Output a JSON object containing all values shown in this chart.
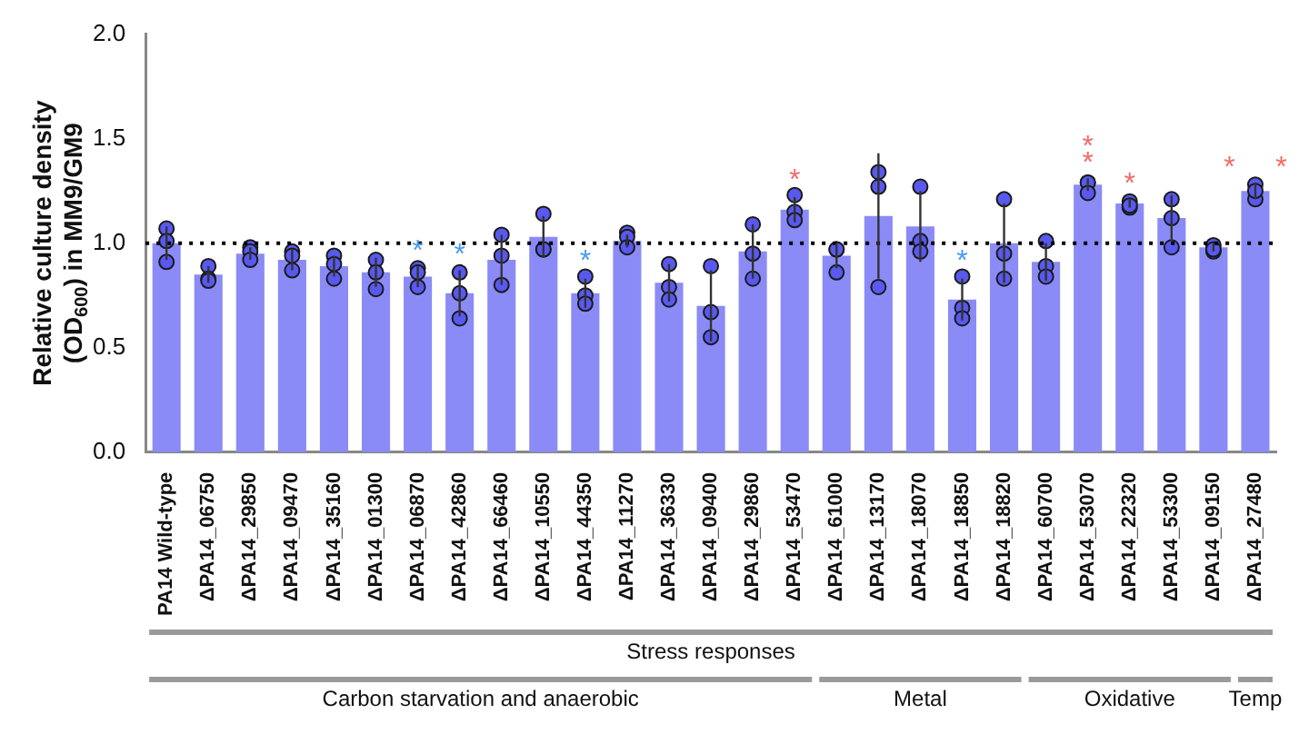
{
  "chart_data": {
    "type": "bar",
    "ylabel": "Relative culture density\n(OD$_{600}$) in MM9/GM9",
    "categories": [
      "PA14 Wild-type",
      "ΔPA14_06750",
      "ΔPA14_29850",
      "ΔPA14_09470",
      "ΔPA14_35160",
      "ΔPA14_01300",
      "ΔPA14_06870",
      "ΔPA14_42860",
      "ΔPA14_66460",
      "ΔPA14_10550",
      "ΔPA14_44350",
      "ΔPA14_11270",
      "ΔPA14_36330",
      "ΔPA14_09400",
      "ΔPA14_29860",
      "ΔPA14_53470",
      "ΔPA14_61000",
      "ΔPA14_13170",
      "ΔPA14_18070",
      "ΔPA14_18850",
      "ΔPA14_18820",
      "ΔPA14_60700",
      "ΔPA14_53070",
      "ΔPA14_22320",
      "ΔPA14_53300",
      "ΔPA14_09150",
      "ΔPA14_27480"
    ],
    "series": [
      {
        "color": "#8b8bf7",
        "values": [
          1.0,
          0.85,
          0.95,
          0.92,
          0.89,
          0.86,
          0.84,
          0.76,
          0.92,
          1.03,
          0.76,
          1.01,
          0.81,
          0.7,
          0.96,
          1.16,
          0.94,
          1.13,
          1.08,
          0.73,
          1.0,
          0.91,
          1.28,
          1.19,
          1.12,
          0.98,
          1.25
        ],
        "errors": [
          0.08,
          0.04,
          0.03,
          0.05,
          0.05,
          0.07,
          0.05,
          0.11,
          0.12,
          0.1,
          0.07,
          0.03,
          0.09,
          0.17,
          0.13,
          0.06,
          0.06,
          0.3,
          0.17,
          0.1,
          0.19,
          0.09,
          0.03,
          0.02,
          0.11,
          0.02,
          0.04
        ]
      },
      {
        "type": "scatter",
        "color": "#5959ef",
        "x": [
          "PA14 Wild-type",
          "PA14 Wild-type",
          "PA14 Wild-type",
          "ΔPA14_06750",
          "ΔPA14_06750",
          "ΔPA14_06750",
          "ΔPA14_29850",
          "ΔPA14_29850",
          "ΔPA14_29850",
          "ΔPA14_09470",
          "ΔPA14_09470",
          "ΔPA14_09470",
          "ΔPA14_35160",
          "ΔPA14_35160",
          "ΔPA14_35160",
          "ΔPA14_01300",
          "ΔPA14_01300",
          "ΔPA14_01300",
          "ΔPA14_06870",
          "ΔPA14_06870",
          "ΔPA14_06870",
          "ΔPA14_42860",
          "ΔPA14_42860",
          "ΔPA14_42860",
          "ΔPA14_66460",
          "ΔPA14_66460",
          "ΔPA14_66460",
          "ΔPA14_10550",
          "ΔPA14_10550",
          "ΔPA14_10550",
          "ΔPA14_44350",
          "ΔPA14_44350",
          "ΔPA14_44350",
          "ΔPA14_11270",
          "ΔPA14_11270",
          "ΔPA14_11270",
          "ΔPA14_36330",
          "ΔPA14_36330",
          "ΔPA14_36330",
          "ΔPA14_09400",
          "ΔPA14_09400",
          "ΔPA14_09400",
          "ΔPA14_29860",
          "ΔPA14_29860",
          "ΔPA14_29860",
          "ΔPA14_53470",
          "ΔPA14_53470",
          "ΔPA14_53470",
          "ΔPA14_61000",
          "ΔPA14_61000",
          "ΔPA14_61000",
          "ΔPA14_13170",
          "ΔPA14_13170",
          "ΔPA14_13170",
          "ΔPA14_18070",
          "ΔPA14_18070",
          "ΔPA14_18070",
          "ΔPA14_18850",
          "ΔPA14_18850",
          "ΔPA14_18850",
          "ΔPA14_18820",
          "ΔPA14_18820",
          "ΔPA14_18820",
          "ΔPA14_60700",
          "ΔPA14_60700",
          "ΔPA14_60700",
          "ΔPA14_53070",
          "ΔPA14_53070",
          "ΔPA14_53070",
          "ΔPA14_22320",
          "ΔPA14_22320",
          "ΔPA14_22320",
          "ΔPA14_53300",
          "ΔPA14_53300",
          "ΔPA14_53300",
          "ΔPA14_09150",
          "ΔPA14_09150",
          "ΔPA14_09150",
          "ΔPA14_27480",
          "ΔPA14_27480",
          "ΔPA14_27480"
        ],
        "values": [
          1.07,
          1.01,
          0.91,
          0.89,
          0.83,
          0.82,
          0.98,
          0.96,
          0.92,
          0.96,
          0.94,
          0.87,
          0.94,
          0.9,
          0.83,
          0.92,
          0.86,
          0.78,
          0.88,
          0.86,
          0.79,
          0.86,
          0.76,
          0.64,
          1.04,
          0.94,
          0.8,
          1.14,
          0.97,
          0.97,
          0.84,
          0.75,
          0.71,
          1.05,
          1.03,
          0.98,
          0.9,
          0.79,
          0.73,
          0.89,
          0.67,
          0.55,
          1.09,
          0.95,
          0.83,
          1.23,
          1.15,
          1.11,
          0.97,
          0.97,
          0.86,
          1.34,
          1.27,
          0.79,
          1.27,
          1.01,
          0.96,
          0.84,
          0.69,
          0.64,
          1.21,
          0.95,
          0.83,
          1.01,
          0.89,
          0.84,
          1.29,
          1.29,
          1.24,
          1.2,
          1.17,
          1.18,
          1.21,
          1.12,
          0.98,
          0.99,
          0.96,
          0.97,
          1.28,
          1.21,
          1.25
        ]
      }
    ],
    "ylim": [
      0,
      2.0
    ],
    "yticks": [
      {
        "value": 0,
        "label": "0.0"
      },
      {
        "value": 0.5,
        "label": "0.5"
      },
      {
        "value": 1.0,
        "label": "1.0"
      },
      {
        "value": 1.5,
        "label": "1.5"
      },
      {
        "value": 2.0,
        "label": "2.0"
      }
    ],
    "ref_lines": [
      {
        "axis": "y",
        "value": 1.0,
        "color": "#000000",
        "line_style": "dotted"
      }
    ],
    "annotations": [
      "Stress responses",
      "Carbon starvation and anaerobic",
      "Metal",
      "Oxidative",
      "Temp",
      {
        "text": "*",
        "x": "ΔPA14_06870",
        "y": 0.84
      },
      {
        "text": "*",
        "x": "ΔPA14_42860",
        "y": 0.76
      },
      {
        "text": "*",
        "x": "ΔPA14_44350",
        "y": 0.76
      },
      {
        "text": "*",
        "x": "ΔPA14_53470",
        "y": 1.16
      },
      {
        "text": "*",
        "x": "ΔPA14_18850",
        "y": 0.73
      },
      {
        "text": "*",
        "x": "ΔPA14_53070",
        "y": 1.28
      },
      {
        "text": "*",
        "x": "ΔPA14_53070",
        "y": 1.28
      },
      {
        "text": "*",
        "x": "ΔPA14_22320",
        "y": 1.19
      },
      {
        "text": "*     *",
        "x": "ΔPA14_27480",
        "y": 1.25
      }
    ],
    "grid": false,
    "legend": false,
    "marker": "circle"
  }
}
